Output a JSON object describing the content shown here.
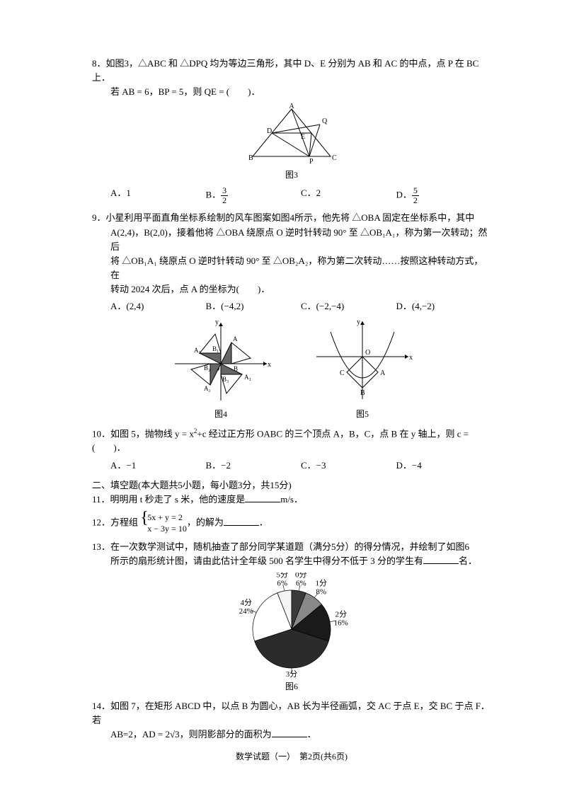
{
  "q8": {
    "num": "8．",
    "text1": "如图3，△ABC 和 △DPQ 均为等边三角形，其中 D、E 分别为 AB 和 AC 的中点，点 P 在 BC 上．",
    "text2": "若 AB = 6，BP = 5，则 QE = (　　)．",
    "figLabel": "图3",
    "choices": {
      "a": "A．1",
      "b_pre": "B．",
      "b_num": "3",
      "b_den": "2",
      "c": "C．2",
      "d_pre": "D．",
      "d_num": "5",
      "d_den": "2"
    }
  },
  "q9": {
    "num": "9．",
    "text1": "小星利用平面直角坐标系绘制的风车图案如图4所示，他先将 △OBA 固定在坐标系中，其中",
    "text2": "A(2,4)，B(2,0)，接着他将 △OBA 绕原点 O 逆时针转动 90° 至 △OB₁A₁，称为第一次转动；然后",
    "text3": "将 △OB₁A₁ 绕原点 O 逆时针转动 90° 至 △OB₂A₂，称为第二次转动……按照这种转动方式，在",
    "text4": "转动 2024 次后，点 A 的坐标为(　　)．",
    "choices": {
      "a": "A．(2,4)",
      "b": "B．(−4,2)",
      "c": "C．(−2,−4)",
      "d": "D．(4,−2)"
    },
    "fig4Label": "图4",
    "fig5Label": "图5"
  },
  "q10": {
    "num": "10．",
    "text_pre": "如图 5，抛物线 y = x",
    "text_sup": "2",
    "text_post": "+c 经过正方形 OABC 的三个顶点 A，B，C，点 B 在 y 轴上，则 c = (　　)．",
    "choices": {
      "a": "A．−1",
      "b": "B．−2",
      "c": "C．−3",
      "d": "D．−4"
    }
  },
  "section2": "二、填空题(本大题共5小题，每小题3分，共15分)",
  "q11": {
    "num": "11．",
    "text_a": "明明用 t 秒走了 s 米，他的速度是",
    "text_b": "m/s．"
  },
  "q12": {
    "num": "12．",
    "text_a": "方程组",
    "eq1": "5x + y = 2",
    "eq2": "x − 3y = 10",
    "text_b": "，的解为",
    "text_c": "．"
  },
  "q13": {
    "num": "13．",
    "text1": "在一次数学测试中，随机抽查了部分同学某道题（满分5分）的得分情况，并绘制了如图6",
    "text2a": "所示的扇形统计图，请由此估计全年级 500 名学生中得分不低于 3 分的学生有",
    "text2b": "名．",
    "figLabel": "图6",
    "pie": {
      "slices": [
        {
          "label": "0分",
          "pct": 6,
          "labelPct": "6%",
          "color": "#3a3a3a"
        },
        {
          "label": "1分",
          "pct": 8,
          "labelPct": "8%",
          "color": "#888888"
        },
        {
          "label": "2分",
          "pct": 16,
          "labelPct": "16%",
          "color": "#1a1a1a"
        },
        {
          "label": "3分",
          "pct": 40,
          "labelPct": "40%",
          "color": "#2b2b2b"
        },
        {
          "label": "4分",
          "pct": 24,
          "labelPct": "24%",
          "color": "#ffffff"
        },
        {
          "label": "5分",
          "pct": 6,
          "labelPct": "6%",
          "color": "#f5f5f5"
        }
      ],
      "radius": 55,
      "stroke": "#000000",
      "bg": "#ffffff",
      "fontsize": 11
    }
  },
  "q14": {
    "num": "14．",
    "text1": "如图 7，在矩形 ABCD 中，以点 B 为圆心，AB 长为半径画弧，交 AC 于点 E，交 BC 于点 F．若",
    "text2a": "AB=2，AD = 2√3，则阴影部分的面积为",
    "text2b": "．"
  },
  "footer": "数学试题（一）　第2页(共6页)"
}
